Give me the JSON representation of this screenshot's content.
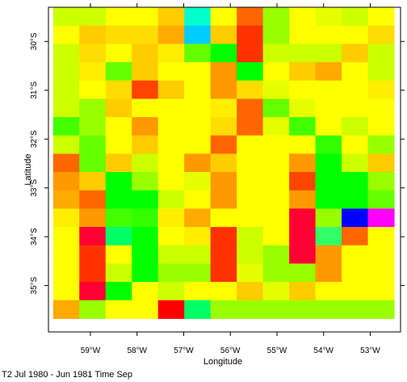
{
  "chart_data": {
    "type": "heatmap",
    "xlabel": "Longitude",
    "ylabel": "Latitude",
    "caption": "T2 Jul 1980 - Jun 1981 Time Sep",
    "x_ticks": [
      {
        "value": -59,
        "label": "59°W"
      },
      {
        "value": -58,
        "label": "58°W"
      },
      {
        "value": -57,
        "label": "57°W"
      },
      {
        "value": -56,
        "label": "56°W"
      },
      {
        "value": -55,
        "label": "55°W"
      },
      {
        "value": -54,
        "label": "54°W"
      },
      {
        "value": -53,
        "label": "53°W"
      }
    ],
    "y_ticks": [
      {
        "value": -30,
        "label": "30°S"
      },
      {
        "value": -31,
        "label": "31°S"
      },
      {
        "value": -32,
        "label": "32°S"
      },
      {
        "value": -33,
        "label": "33°S"
      },
      {
        "value": -34,
        "label": "34°S"
      },
      {
        "value": -35,
        "label": "35°S"
      }
    ],
    "xlim": [
      -59.9,
      -52.35
    ],
    "ylim": [
      -35.95,
      -29.3
    ],
    "grid": {
      "cols": 13,
      "rows": 17,
      "x_start": -59.8,
      "cell_w": 0.5625,
      "y_top": -29.3,
      "cell_h": 0.375
    },
    "colors": {
      "a": "#ccff00",
      "b": "#ffff00",
      "c": "#ffcc00",
      "d": "#e6ff00",
      "e": "#99ff00",
      "f": "#66ff00",
      "g": "#33ff00",
      "h": "#00ff00",
      "i": "#00ffcc",
      "j": "#00ccff",
      "k": "#ff9900",
      "l": "#ff6600",
      "m": "#ff3300",
      "n": "#ff0033",
      "o": "#ff0000",
      "p": "#0000ff",
      "q": "#ff00ff",
      "r": "#33ff66",
      "s": "#ffdd00",
      "t": "#ffee00",
      "u": "#ffaa00",
      "v": "#44ff00",
      "w": "#00ff66",
      "x": "#ff4400"
    },
    "cells": [
      "aabbciblebdab",
      "bcssujcmebbbs",
      "asbctfhmaaaca",
      "atfcbbkhbcuba",
      "absxcbksdbbbt",
      "aecbbbtlfdbbb",
      "vebkbbsldvbab",
      "afbcbblbbbgbe",
      "lfcabkcbbkhac",
      "kchebdkbbxhhe",
      "ulhhabkbbkhhf",
      "tkvgtubbbnepq",
      "bnwhbtmabnrlb",
      "bmbhaamaenkbb",
      "bmaheemdeekbb",
      "bnhbabbcdcbbb",
      "uebboweeeeeee"
    ]
  }
}
